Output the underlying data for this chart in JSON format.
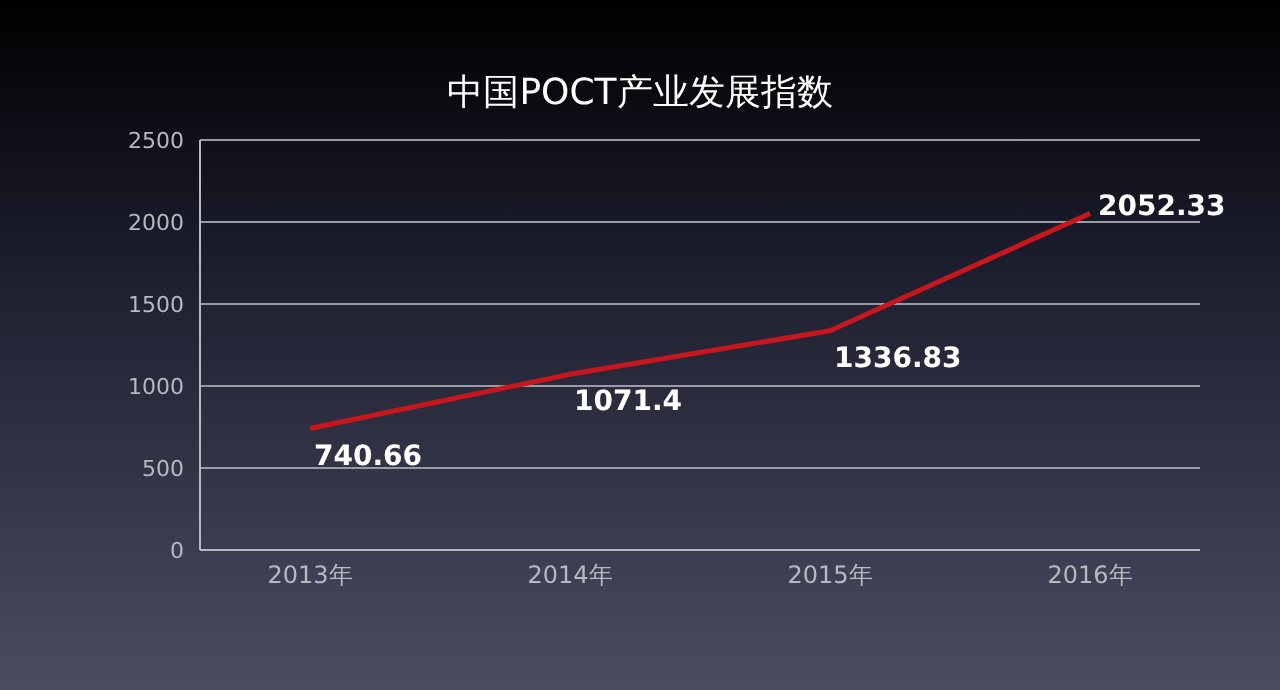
{
  "chart_data": {
    "type": "line",
    "title": "中国POCT产业发展指数",
    "categories": [
      "2013年",
      "2014年",
      "2015年",
      "2016年"
    ],
    "series": [
      {
        "color": "#c8161d",
        "values": [
          740.66,
          1071.4,
          1336.83,
          2052.33
        ]
      }
    ],
    "ylim": [
      0,
      2500
    ],
    "yticks": [
      0,
      500,
      1000,
      1500,
      2000,
      2500
    ],
    "grid": "y",
    "marker": "none",
    "data_labels": true
  }
}
